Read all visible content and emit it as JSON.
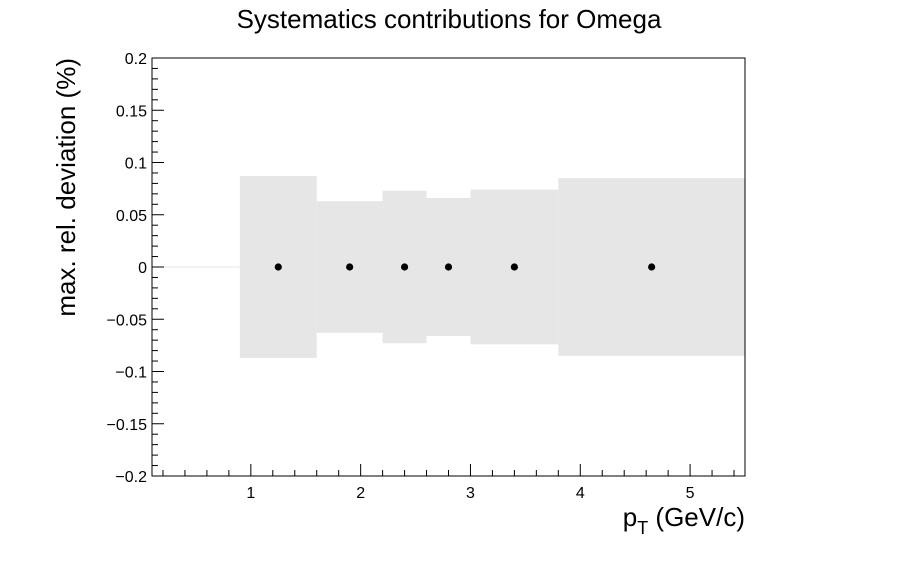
{
  "chart_data": {
    "type": "scatter",
    "title": "Systematics contributions for Omega",
    "xlabel_main": "p",
    "xlabel_sub": "T",
    "xlabel_rest": " (GeV/c)",
    "ylabel": "max. rel. deviation (%)",
    "xlim": [
      0.1,
      5.5
    ],
    "ylim": [
      -0.2,
      0.2
    ],
    "x_ticks": [
      1,
      2,
      3,
      4,
      5
    ],
    "y_ticks": [
      -0.2,
      -0.15,
      -0.1,
      -0.05,
      0,
      0.05,
      0.1,
      0.15,
      0.2
    ],
    "x_tick_labels": [
      "1",
      "2",
      "3",
      "4",
      "5"
    ],
    "y_tick_labels": [
      "−0.2",
      "−0.15",
      "−0.1",
      "−0.05",
      "0",
      "0.05",
      "0.1",
      "0.15",
      "0.2"
    ],
    "grid": false,
    "band_color": "#e6e6e6",
    "marker_color": "#000000",
    "bins": [
      {
        "lo": 0.1,
        "hi": 0.9,
        "err": 0.0
      },
      {
        "lo": 0.9,
        "hi": 1.6,
        "err": 0.087
      },
      {
        "lo": 1.6,
        "hi": 2.2,
        "err": 0.063
      },
      {
        "lo": 2.2,
        "hi": 2.6,
        "err": 0.073
      },
      {
        "lo": 2.6,
        "hi": 3.0,
        "err": 0.066
      },
      {
        "lo": 3.0,
        "hi": 3.8,
        "err": 0.074
      },
      {
        "lo": 3.8,
        "hi": 5.5,
        "err": 0.085
      }
    ],
    "points": [
      {
        "x": 1.25,
        "y": 0
      },
      {
        "x": 1.9,
        "y": 0
      },
      {
        "x": 2.4,
        "y": 0
      },
      {
        "x": 2.8,
        "y": 0
      },
      {
        "x": 3.4,
        "y": 0
      },
      {
        "x": 4.65,
        "y": 0
      }
    ]
  }
}
